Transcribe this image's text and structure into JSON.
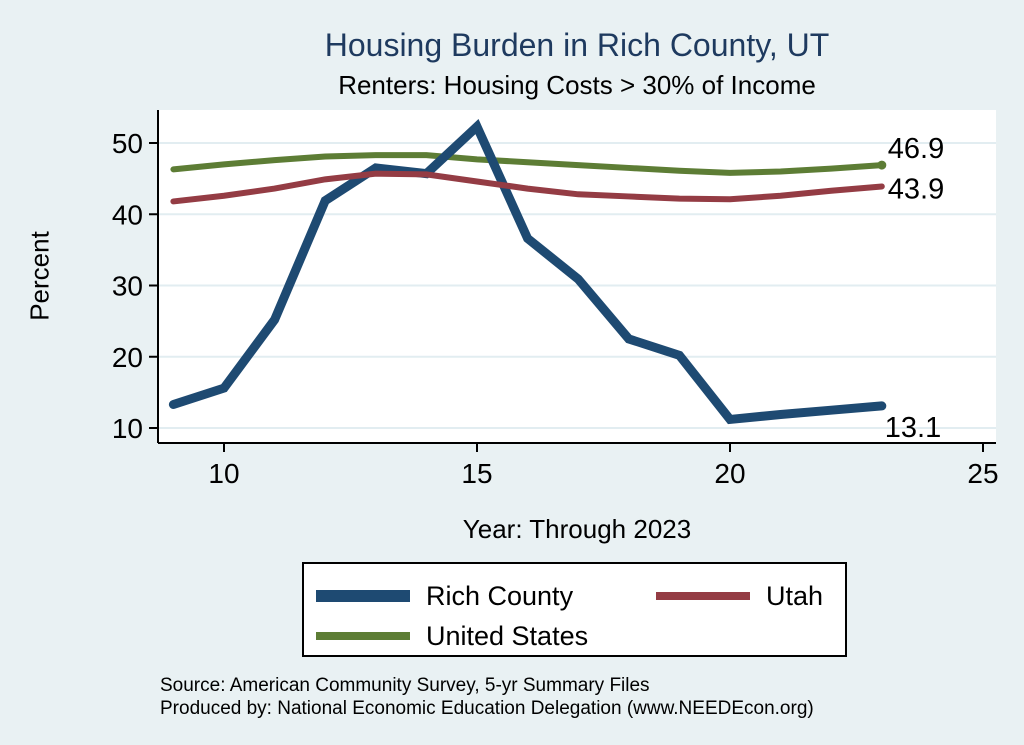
{
  "title": "Housing Burden in Rich County, UT",
  "subtitle": "Renters: Housing Costs > 30% of Income",
  "chart_data": {
    "type": "line",
    "title": "Housing Burden in Rich County, UT",
    "subtitle": "Renters: Housing Costs > 30% of Income",
    "xlabel": "Year: Through 2023",
    "ylabel": "Percent",
    "x": [
      9,
      10,
      11,
      12,
      13,
      14,
      15,
      16,
      17,
      18,
      19,
      20,
      21,
      22,
      23
    ],
    "x_ticks": [
      10,
      15,
      20,
      25
    ],
    "y_ticks": [
      10,
      20,
      30,
      40,
      50
    ],
    "xlim": [
      8.7,
      25.3
    ],
    "ylim": [
      8,
      54.5
    ],
    "grid": "horizontal",
    "legend_position": "bottom",
    "series": [
      {
        "name": "United States",
        "color": "#5d7d35",
        "line_width": 6,
        "end_label": "46.9",
        "end_marker": true,
        "values": [
          46.3,
          47.0,
          47.6,
          48.1,
          48.3,
          48.3,
          47.7,
          47.3,
          46.9,
          46.5,
          46.1,
          45.8,
          46.0,
          46.4,
          46.9
        ]
      },
      {
        "name": "Rich County",
        "color": "#1e4a72",
        "line_width": 9,
        "end_label": "13.1",
        "end_marker": false,
        "values": [
          13.3,
          15.6,
          25.2,
          41.9,
          46.5,
          45.7,
          52.3,
          36.6,
          30.9,
          22.5,
          20.2,
          11.2,
          11.9,
          12.5,
          13.1
        ]
      },
      {
        "name": "Utah",
        "color": "#943c44",
        "line_width": 6,
        "end_label": "43.9",
        "end_marker": false,
        "values": [
          41.8,
          42.6,
          43.6,
          44.9,
          45.7,
          45.6,
          44.6,
          43.6,
          42.8,
          42.5,
          42.2,
          42.1,
          42.6,
          43.3,
          43.9
        ]
      }
    ]
  },
  "legend": {
    "entries": [
      {
        "label": "Rich County",
        "color": "#1e4a72",
        "thick": true
      },
      {
        "label": "Utah",
        "color": "#943c44",
        "thick": false
      },
      {
        "label": "United States",
        "color": "#5d7d35",
        "thick": false
      }
    ]
  },
  "footer": {
    "line1": "Source: American Community Survey, 5-yr Summary Files",
    "line2": "Produced by: National Economic Education Delegation (www.NEEDEcon.org)"
  },
  "colors": {
    "background": "#e9f1f3",
    "plot_background": "#ffffff",
    "gridline": "#e2edf1",
    "title": "#1e3a5f",
    "axis": "#000000"
  }
}
